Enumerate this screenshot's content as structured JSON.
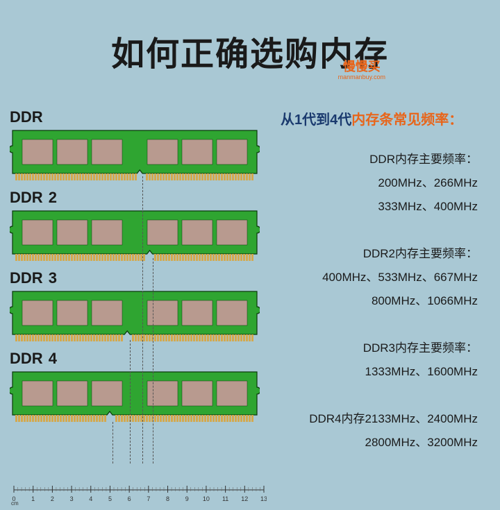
{
  "title": "如何正确选购内存",
  "watermark": {
    "cn": "慢慢买",
    "en": "manmanbuy.com"
  },
  "background_color": "#a9c8d4",
  "ram_board_color": "#2fa531",
  "ram_chip_color": "#b89a8f",
  "ram_pin_color": "#d4a94e",
  "ram_outline": "#0a3a0a",
  "sticks": [
    {
      "label": "DDR",
      "notch_ratio": 0.52,
      "side_notch_top": true,
      "side_notch_bottom": false
    },
    {
      "label": "DDR 2",
      "notch_ratio": 0.56,
      "side_notch_top": false,
      "side_notch_bottom": false
    },
    {
      "label": "DDR 3",
      "notch_ratio": 0.47,
      "side_notch_top": false,
      "side_notch_bottom": false
    },
    {
      "label": "DDR 4",
      "notch_ratio": 0.4,
      "side_notch_top": false,
      "side_notch_bottom": false
    }
  ],
  "ruler": {
    "start": 0,
    "end": 13,
    "unit": "cm"
  },
  "section_title": {
    "part1": "从1代到4代",
    "part2": "内存条常见频率："
  },
  "freq_groups": [
    {
      "lines": [
        "DDR内存主要频率：",
        "200MHz、266MHz",
        "333MHz、400MHz"
      ]
    },
    {
      "lines": [
        "DDR2内存主要频率：",
        "400MHz、533MHz、667MHz",
        "800MHz、1066MHz"
      ]
    },
    {
      "lines": [
        "DDR3内存主要频率：",
        "1333MHz、1600MHz"
      ]
    },
    {
      "lines": [
        "DDR4内存2133MHz、2400MHz",
        "2800MHz、3200MHz"
      ]
    }
  ]
}
